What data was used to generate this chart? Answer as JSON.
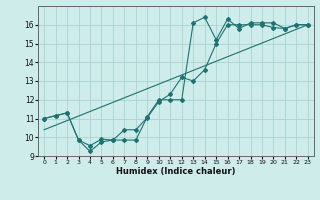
{
  "title": "",
  "xlabel": "Humidex (Indice chaleur)",
  "xlim": [
    -0.5,
    23.5
  ],
  "ylim": [
    9,
    17
  ],
  "yticks": [
    9,
    10,
    11,
    12,
    13,
    14,
    15,
    16
  ],
  "xticks": [
    0,
    1,
    2,
    3,
    4,
    5,
    6,
    7,
    8,
    9,
    10,
    11,
    12,
    13,
    14,
    15,
    16,
    17,
    18,
    19,
    20,
    21,
    22,
    23
  ],
  "bg_color": "#ceecea",
  "grid_color": "#aad4d0",
  "line_color": "#1e7272",
  "line1_x": [
    0,
    1,
    2,
    3,
    4,
    5,
    6,
    7,
    8,
    9,
    10,
    11,
    12,
    13,
    14,
    15,
    16,
    17,
    18,
    19,
    20,
    21,
    22,
    23
  ],
  "line1_y": [
    11.0,
    11.15,
    11.3,
    9.85,
    9.55,
    9.9,
    9.85,
    9.85,
    9.85,
    11.1,
    12.0,
    12.0,
    12.0,
    16.1,
    16.4,
    15.2,
    16.3,
    15.8,
    16.1,
    16.1,
    16.1,
    15.8,
    16.0,
    16.0
  ],
  "line2_x": [
    0,
    1,
    2,
    3,
    4,
    5,
    6,
    7,
    8,
    9,
    10,
    11,
    12,
    13,
    14,
    15,
    16,
    17,
    18,
    19,
    20,
    21,
    22,
    23
  ],
  "line2_y": [
    11.0,
    11.15,
    11.3,
    9.85,
    9.25,
    9.75,
    9.85,
    10.4,
    10.4,
    11.05,
    11.9,
    12.3,
    13.2,
    13.0,
    13.6,
    15.0,
    16.0,
    16.0,
    16.0,
    16.0,
    15.85,
    15.8,
    16.0,
    16.0
  ],
  "line3_x": [
    0,
    23
  ],
  "line3_y": [
    10.4,
    16.0
  ]
}
